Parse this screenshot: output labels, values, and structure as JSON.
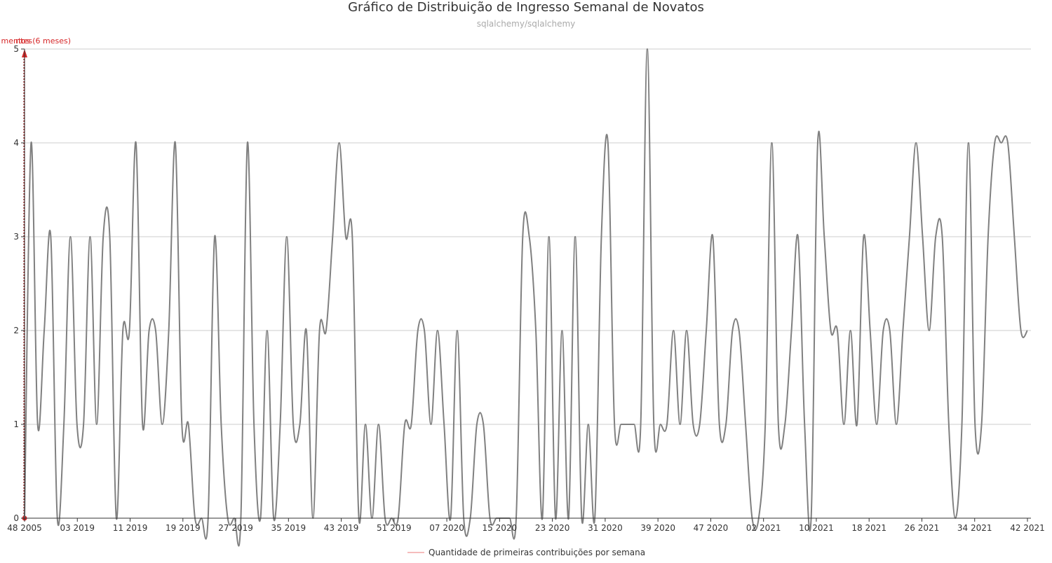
{
  "chart_data": {
    "type": "line",
    "title": "Gráfico de Distribuição de Ingresso Semanal de Novatos",
    "subtitle": "sqlalchemy/sqlalchemy",
    "ylim": [
      0,
      5
    ],
    "y_ticks": [
      "0",
      "1",
      "2",
      "3",
      "4",
      "5"
    ],
    "x_tick_labels": [
      "48 2005",
      "03 2019",
      "11 2019",
      "19 2019",
      "27 2019",
      "35 2019",
      "43 2019",
      "51 2019",
      "07 2020",
      "15 2020",
      "23 2020",
      "31 2020",
      "39 2020",
      "47 2020",
      "02 2021",
      "10 2021",
      "18 2021",
      "26 2021",
      "34 2021",
      "42 2021"
    ],
    "grid": true,
    "legend_position": "bottom-center",
    "series": [
      {
        "name": "Quantidade de primeiras contribuições por semana",
        "color": "#808080",
        "legend_color": "#f4a6a6",
        "values": [
          0,
          4,
          1,
          2,
          3,
          0,
          1,
          3,
          1,
          1,
          3,
          1,
          3,
          3,
          0,
          2,
          2,
          4,
          1,
          2,
          2,
          1,
          2,
          4,
          1,
          1,
          0,
          0,
          0,
          3,
          1,
          0,
          0,
          0,
          4,
          1,
          0,
          2,
          0,
          1,
          3,
          1,
          1,
          2,
          0,
          2,
          2,
          3,
          4,
          3,
          3,
          0,
          1,
          0,
          1,
          0,
          0,
          0,
          1,
          1,
          2,
          2,
          1,
          2,
          1,
          0,
          2,
          0,
          0,
          1,
          1,
          0,
          0,
          0,
          0,
          0,
          3,
          3,
          2,
          0,
          3,
          0,
          2,
          0,
          3,
          0,
          1,
          0,
          3,
          4,
          1,
          1,
          1,
          1,
          1,
          5,
          1,
          1,
          1,
          2,
          1,
          2,
          1,
          1,
          2,
          3,
          1,
          1,
          2,
          2,
          1,
          0,
          0,
          1,
          4,
          1,
          1,
          2,
          3,
          1,
          0,
          4,
          3,
          2,
          2,
          1,
          2,
          1,
          3,
          2,
          1,
          2,
          2,
          1,
          2,
          3,
          4,
          3,
          2,
          3,
          3,
          1,
          0,
          1,
          4,
          1,
          1,
          3,
          4,
          4,
          4,
          3,
          2,
          2
        ]
      }
    ],
    "markers": [
      {
        "label": "mentos (6 meses)",
        "color": "#d62728"
      },
      {
        "label": "ntes",
        "color": "#d62728"
      }
    ]
  }
}
